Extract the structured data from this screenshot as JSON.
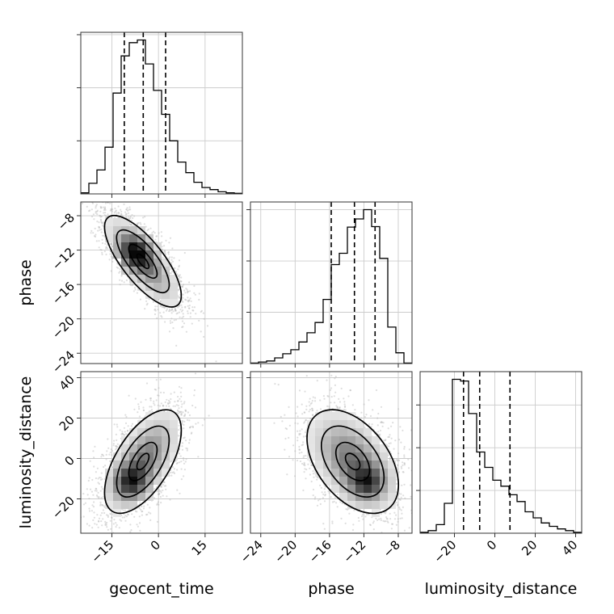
{
  "chart_data": {
    "type": "corner",
    "parameters": [
      "geocent_time",
      "phase",
      "luminosity_distance"
    ],
    "axis_labels": {
      "x": [
        "geocent_time",
        "phase",
        "luminosity_distance"
      ],
      "y": [
        "",
        "phase",
        "luminosity_distance"
      ]
    },
    "ranges": {
      "geocent_time": [
        -25,
        27
      ],
      "phase": [
        -25.2,
        -6.4
      ],
      "luminosity_distance": [
        -37,
        43
      ]
    },
    "ticks": {
      "geocent_time": [
        -15,
        0,
        15
      ],
      "phase": [
        -24,
        -20,
        -16,
        -12,
        -8
      ],
      "luminosity_distance": [
        -20,
        0,
        20,
        40
      ]
    },
    "tick_labels": {
      "geocent_time": [
        "−15",
        "0",
        "15"
      ],
      "phase": [
        "−24",
        "−20",
        "−16",
        "−12",
        "−8"
      ],
      "luminosity_distance": [
        "−20",
        "0",
        "20",
        "40"
      ]
    },
    "grid": true,
    "marginals": {
      "geocent_time": {
        "bin_edges": [
          -25,
          -22.4,
          -19.8,
          -17.2,
          -14.6,
          -12,
          -9.4,
          -6.8,
          -4.2,
          -1.6,
          1,
          3.6,
          6.2,
          8.8,
          11.4,
          14,
          16.6,
          19.2,
          21.8,
          24.4,
          27
        ],
        "counts": [
          2,
          20,
          45,
          88,
          190,
          260,
          285,
          290,
          245,
          195,
          150,
          100,
          60,
          40,
          22,
          12,
          8,
          4,
          2,
          1
        ],
        "quantiles": [
          -11,
          -4.9,
          2.3
        ]
      },
      "phase": {
        "bin_edges": [
          -25.2,
          -24.26,
          -23.32,
          -22.38,
          -21.44,
          -20.5,
          -19.56,
          -18.62,
          -17.68,
          -16.74,
          -15.8,
          -14.86,
          -13.92,
          -12.98,
          -12.04,
          -11.1,
          -10.16,
          -9.22,
          -8.28,
          -7.34,
          -6.4
        ],
        "counts": [
          1,
          3,
          5,
          11,
          19,
          27,
          42,
          60,
          80,
          125,
          193,
          215,
          266,
          282,
          300,
          267,
          205,
          71,
          21,
          1
        ],
        "quantiles": [
          -15.8,
          -13.1,
          -10.7
        ]
      },
      "luminosity_distance": {
        "bin_edges": [
          -37,
          -33,
          -29,
          -25,
          -21,
          -17,
          -13,
          -9,
          -5,
          -1,
          3,
          7,
          11,
          15,
          19,
          23,
          27,
          31,
          35,
          39,
          43
        ],
        "counts": [
          1,
          3,
          10,
          35,
          180,
          178,
          140,
          95,
          77,
          62,
          55,
          45,
          37,
          25,
          18,
          12,
          8,
          5,
          3,
          1
        ],
        "quantiles": [
          -15.5,
          -7.5,
          7.5
        ]
      }
    },
    "joint": {
      "phase_vs_geocent_time": {
        "mean": [
          -5,
          -13.3
        ],
        "sd": [
          6.5,
          2.8
        ],
        "rho": -0.75,
        "peak": [
          -7.6,
          -12.3
        ],
        "contour_levels": [
          0.3,
          0.7,
          1.3,
          1.9
        ],
        "n_points": 2600
      },
      "luminosity_distance_vs_geocent_time": {
        "mean": [
          -5,
          -1.5
        ],
        "sd": [
          6.5,
          13.5
        ],
        "rho": 0.6,
        "peak": [
          -9,
          -12
        ],
        "contour_levels": [
          0.3,
          0.7,
          1.3,
          1.9
        ],
        "n_points": 2600
      },
      "luminosity_distance_vs_phase": {
        "mean": [
          -13.3,
          -1.5
        ],
        "sd": [
          2.8,
          13.5
        ],
        "rho": -0.45,
        "peak": [
          -11.6,
          -12
        ],
        "contour_levels": [
          0.3,
          0.7,
          1.3,
          1.9
        ],
        "n_points": 2600
      }
    }
  }
}
